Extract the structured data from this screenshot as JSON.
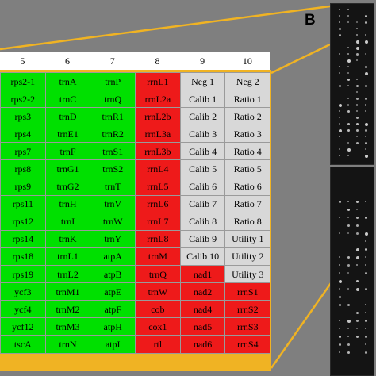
{
  "panel_label": "B",
  "column_headers": [
    "5",
    "6",
    "7",
    "8",
    "9",
    "10"
  ],
  "colors": {
    "green": "#00e000",
    "red": "#ee1a1a",
    "gray": "#d8d8d8",
    "orange": "#f0b323",
    "background": "#7f7f7f"
  },
  "grid": {
    "rows": [
      [
        [
          "rps2-1",
          "g"
        ],
        [
          "trnA",
          "g"
        ],
        [
          "trnP",
          "g"
        ],
        [
          "rrnL1",
          "r"
        ],
        [
          "Neg 1",
          "w"
        ],
        [
          "Neg 2",
          "w"
        ]
      ],
      [
        [
          "rps2-2",
          "g"
        ],
        [
          "trnC",
          "g"
        ],
        [
          "trnQ",
          "g"
        ],
        [
          "rrnL2a",
          "r"
        ],
        [
          "Calib 1",
          "w"
        ],
        [
          "Ratio 1",
          "w"
        ]
      ],
      [
        [
          "rps3",
          "g"
        ],
        [
          "trnD",
          "g"
        ],
        [
          "trnR1",
          "g"
        ],
        [
          "rrnL2b",
          "r"
        ],
        [
          "Calib 2",
          "w"
        ],
        [
          "Ratio 2",
          "w"
        ]
      ],
      [
        [
          "rps4",
          "g"
        ],
        [
          "trnE1",
          "g"
        ],
        [
          "trnR2",
          "g"
        ],
        [
          "rrnL3a",
          "r"
        ],
        [
          "Calib 3",
          "w"
        ],
        [
          "Ratio 3",
          "w"
        ]
      ],
      [
        [
          "rps7",
          "g"
        ],
        [
          "trnF",
          "g"
        ],
        [
          "trnS1",
          "g"
        ],
        [
          "rrnL3b",
          "r"
        ],
        [
          "Calib 4",
          "w"
        ],
        [
          "Ratio 4",
          "w"
        ]
      ],
      [
        [
          "rps8",
          "g"
        ],
        [
          "trnG1",
          "g"
        ],
        [
          "trnS2",
          "g"
        ],
        [
          "rrnL4",
          "r"
        ],
        [
          "Calib 5",
          "w"
        ],
        [
          "Ratio 5",
          "w"
        ]
      ],
      [
        [
          "rps9",
          "g"
        ],
        [
          "trnG2",
          "g"
        ],
        [
          "trnT",
          "g"
        ],
        [
          "rrnL5",
          "r"
        ],
        [
          "Calib 6",
          "w"
        ],
        [
          "Ratio 6",
          "w"
        ]
      ],
      [
        [
          "rps11",
          "g"
        ],
        [
          "trnH",
          "g"
        ],
        [
          "trnV",
          "g"
        ],
        [
          "rrnL6",
          "r"
        ],
        [
          "Calib 7",
          "w"
        ],
        [
          "Ratio 7",
          "w"
        ]
      ],
      [
        [
          "rps12",
          "g"
        ],
        [
          "trnI",
          "g"
        ],
        [
          "trnW",
          "g"
        ],
        [
          "rrnL7",
          "r"
        ],
        [
          "Calib 8",
          "w"
        ],
        [
          "Ratio 8",
          "w"
        ]
      ],
      [
        [
          "rps14",
          "g"
        ],
        [
          "trnK",
          "g"
        ],
        [
          "trnY",
          "g"
        ],
        [
          "rrnL8",
          "r"
        ],
        [
          "Calib 9",
          "w"
        ],
        [
          "Utility 1",
          "w"
        ]
      ],
      [
        [
          "rps18",
          "g"
        ],
        [
          "trnL1",
          "g"
        ],
        [
          "atpA",
          "g"
        ],
        [
          "trnM",
          "r"
        ],
        [
          "Calib 10",
          "w"
        ],
        [
          "Utility 2",
          "w"
        ]
      ],
      [
        [
          "rps19",
          "g"
        ],
        [
          "trnL2",
          "g"
        ],
        [
          "atpB",
          "g"
        ],
        [
          "trnQ",
          "r"
        ],
        [
          "nad1",
          "r"
        ],
        [
          "Utility 3",
          "w"
        ]
      ],
      [
        [
          "ycf3",
          "g"
        ],
        [
          "trnM1",
          "g"
        ],
        [
          "atpE",
          "g"
        ],
        [
          "trnW",
          "r"
        ],
        [
          "nad2",
          "r"
        ],
        [
          "rrnS1",
          "r"
        ]
      ],
      [
        [
          "ycf4",
          "g"
        ],
        [
          "trnM2",
          "g"
        ],
        [
          "atpF",
          "g"
        ],
        [
          "cob",
          "r"
        ],
        [
          "nad4",
          "r"
        ],
        [
          "rrnS2",
          "r"
        ]
      ],
      [
        [
          "ycf12",
          "g"
        ],
        [
          "trnM3",
          "g"
        ],
        [
          "atpH",
          "g"
        ],
        [
          "cox1",
          "r"
        ],
        [
          "nad5",
          "r"
        ],
        [
          "rrnS3",
          "r"
        ]
      ],
      [
        [
          "tscA",
          "g"
        ],
        [
          "trnN",
          "g"
        ],
        [
          "atpI",
          "g"
        ],
        [
          "rtl",
          "r"
        ],
        [
          "nad6",
          "r"
        ],
        [
          "rrnS4",
          "r"
        ]
      ]
    ]
  }
}
